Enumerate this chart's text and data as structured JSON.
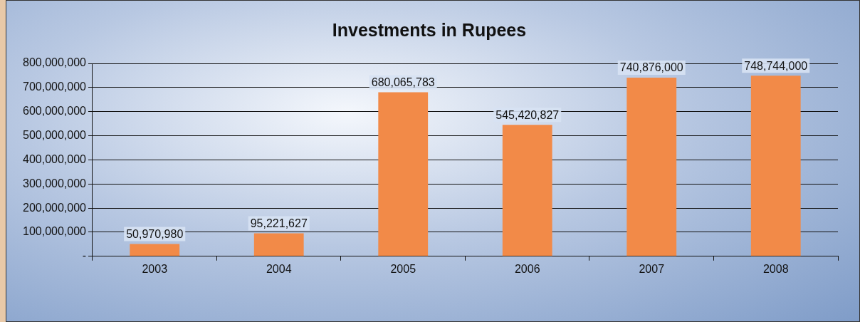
{
  "chart_data": {
    "type": "bar",
    "title": "Investments in Rupees",
    "categories": [
      "2003",
      "2004",
      "2005",
      "2006",
      "2007",
      "2008"
    ],
    "values": [
      50970980,
      95221627,
      680065783,
      545420827,
      740876000,
      748744000
    ],
    "value_labels": [
      "50,970,980",
      "95,221,627",
      "680,065,783",
      "545,420,827",
      "740,876,000",
      "748,744,000"
    ],
    "color": "#f28a48",
    "ylim": [
      0,
      800000000
    ],
    "yticks": [
      {
        "value": 0,
        "label": "-"
      },
      {
        "value": 100000000,
        "label": "100,000,000"
      },
      {
        "value": 200000000,
        "label": "200,000,000"
      },
      {
        "value": 300000000,
        "label": "300,000,000"
      },
      {
        "value": 400000000,
        "label": "400,000,000"
      },
      {
        "value": 500000000,
        "label": "500,000,000"
      },
      {
        "value": 600000000,
        "label": "600,000,000"
      },
      {
        "value": 700000000,
        "label": "700,000,000"
      },
      {
        "value": 800000000,
        "label": "800,000,000"
      }
    ],
    "grid": "y",
    "legend": false
  }
}
